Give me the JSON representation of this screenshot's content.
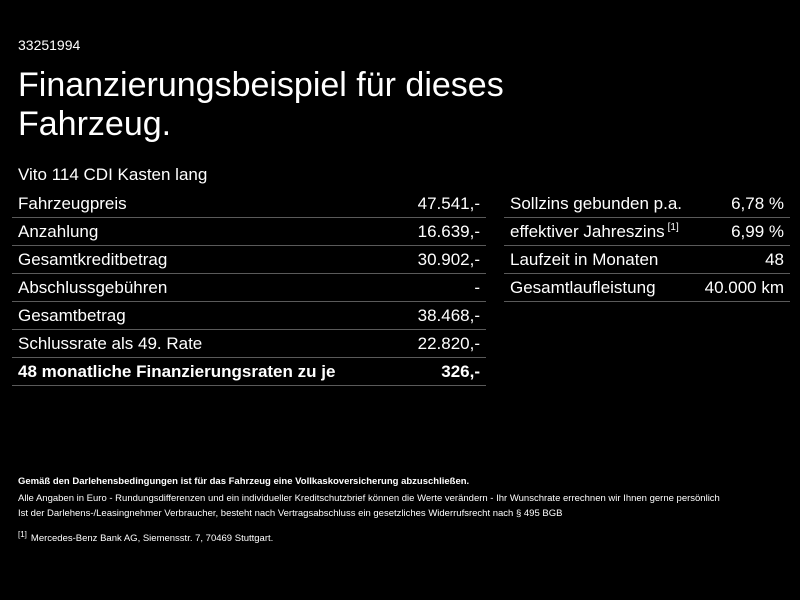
{
  "reference": "33251994",
  "title": "Finanzierungsbeispiel für dieses Fahrzeug.",
  "model": "Vito 114 CDI Kasten lang",
  "left_table": [
    {
      "label": "Fahrzeugpreis",
      "value": "47.541,-",
      "bold": false
    },
    {
      "label": "Anzahlung",
      "value": "16.639,-",
      "bold": false
    },
    {
      "label": "Gesamtkreditbetrag",
      "value": "30.902,-",
      "bold": false
    },
    {
      "label": "Abschlussgebühren",
      "value": "-",
      "bold": false
    },
    {
      "label": "Gesamtbetrag",
      "value": "38.468,-",
      "bold": false
    },
    {
      "label": "Schlussrate als 49. Rate",
      "value": "22.820,-",
      "bold": false
    },
    {
      "label": "48 monatliche Finanzierungsraten zu je",
      "value": "326,-",
      "bold": true
    }
  ],
  "right_table": [
    {
      "label": "Sollzins gebunden p.a.",
      "value": "6,78 %",
      "footnote": ""
    },
    {
      "label": "effektiver Jahreszins",
      "value": "6,99 %",
      "footnote": "[1]"
    },
    {
      "label": "Laufzeit in Monaten",
      "value": "48",
      "footnote": ""
    },
    {
      "label": "Gesamtlaufleistung",
      "value": "40.000 km",
      "footnote": ""
    }
  ],
  "notes": {
    "bold_line": "Gemäß den Darlehensbedingungen ist für das Fahrzeug eine Vollkaskoversicherung abzuschließen.",
    "line1": "Alle Angaben in Euro - Rundungsdifferenzen und ein individueller Kreditschutzbrief können die Werte verändern - Ihr Wunschrate errechnen wir Ihnen gerne persönlich",
    "line2": "Ist der Darlehens-/Leasingnehmer Verbraucher, besteht nach Vertragsabschluss ein gesetzliches Widerrufsrecht nach § 495 BGB",
    "footnote_marker": "[1]",
    "footnote_text": "Mercedes-Benz Bank AG, Siemensstr. 7, 70469 Stuttgart."
  }
}
